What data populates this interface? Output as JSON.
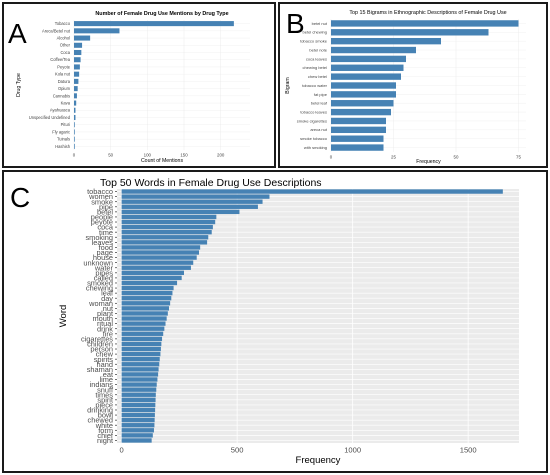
{
  "panels": {
    "a": {
      "letter": "A"
    },
    "b": {
      "letter": "B"
    },
    "c": {
      "letter": "C"
    }
  },
  "colors": {
    "bar": "#4682b4",
    "panel_bg_c": "#ebebeb",
    "grid": "#ffffff",
    "grid_ab": "#e8e8e8"
  },
  "chart_data": [
    {
      "type": "bar",
      "orientation": "horizontal",
      "title": "Number of Female Drug Use Mentions by Drug Type",
      "xlabel": "Count of Mentions",
      "ylabel": "Drug Type",
      "xlim": [
        0,
        240
      ],
      "xticks": [
        "0",
        "50",
        "100",
        "150",
        "200"
      ],
      "xtick_values": [
        0,
        50,
        100,
        150,
        200
      ],
      "grid": true,
      "categories": [
        "Tobacco",
        "Areca/Betel nut",
        "Alcohol",
        "Other",
        "Coca",
        "Coffee/Tea",
        "Peyote",
        "Kola nut",
        "Datura",
        "Opium",
        "Cannabis",
        "Kava",
        "Ayahuasca",
        "Unspecified Undefined",
        "Pituri",
        "Fly agaric",
        "Tuinals",
        "Hashish"
      ],
      "values": [
        218,
        62,
        22,
        11,
        10,
        9,
        8,
        7,
        6,
        5,
        4,
        3,
        2,
        2,
        1,
        1,
        1,
        1
      ]
    },
    {
      "type": "bar",
      "orientation": "horizontal",
      "title": "Top 15 Bigrams in Ethnographic Descriptions of Female Drug Use",
      "xlabel": "Frequency",
      "ylabel": "Bigram",
      "xlim": [
        0,
        78
      ],
      "xticks": [
        "0",
        "25",
        "50",
        "75"
      ],
      "xtick_values": [
        0,
        25,
        50,
        75
      ],
      "grid": true,
      "categories": [
        "betel nut",
        "betel chewing",
        "tobacco smoke",
        "betel note",
        "coca leaves",
        "chewing betel",
        "chew betel",
        "tobacco water",
        "fat pipe",
        "betel leaf",
        "tobacco leaves",
        "smoke cigarettes",
        "areca nut",
        "smoke tobacco",
        "with smoking"
      ],
      "values": [
        75,
        63,
        44,
        34,
        30,
        29,
        28,
        26,
        26,
        25,
        24,
        22,
        22,
        21,
        21
      ]
    },
    {
      "type": "bar",
      "orientation": "horizontal",
      "title": "Top 50 Words in Female Drug Use Descriptions",
      "xlabel": "Frequency",
      "ylabel": "Word",
      "xlim": [
        -20,
        1720
      ],
      "xticks": [
        "0",
        "500",
        "1000",
        "1500"
      ],
      "xtick_values": [
        0,
        500,
        1000,
        1500
      ],
      "grid": true,
      "categories": [
        "tobacco",
        "women",
        "smoke",
        "pipe",
        "betel",
        "people",
        "peyote",
        "coca",
        "time",
        "smoking",
        "leaves",
        "food",
        "page",
        "house",
        "unknown",
        "water",
        "pipes",
        "called",
        "smoked",
        "chewing",
        "leaf",
        "day",
        "woman",
        "nut",
        "plant",
        "mouth",
        "ritual",
        "drink",
        "fire",
        "cigarettes",
        "children",
        "person",
        "chew",
        "spirits",
        "hand",
        "shaman",
        "eat",
        "lime",
        "indians",
        "snuff",
        "times",
        "spirit",
        "piece",
        "drinking",
        "bowl",
        "chewed",
        "white",
        "form",
        "chief",
        "night"
      ],
      "values": [
        1650,
        640,
        610,
        590,
        510,
        410,
        405,
        395,
        390,
        375,
        370,
        340,
        335,
        325,
        310,
        300,
        270,
        260,
        240,
        225,
        220,
        215,
        210,
        205,
        200,
        195,
        190,
        185,
        180,
        175,
        172,
        170,
        168,
        165,
        163,
        160,
        158,
        155,
        152,
        150,
        148,
        147,
        146,
        145,
        144,
        143,
        142,
        140,
        135,
        130
      ]
    }
  ]
}
